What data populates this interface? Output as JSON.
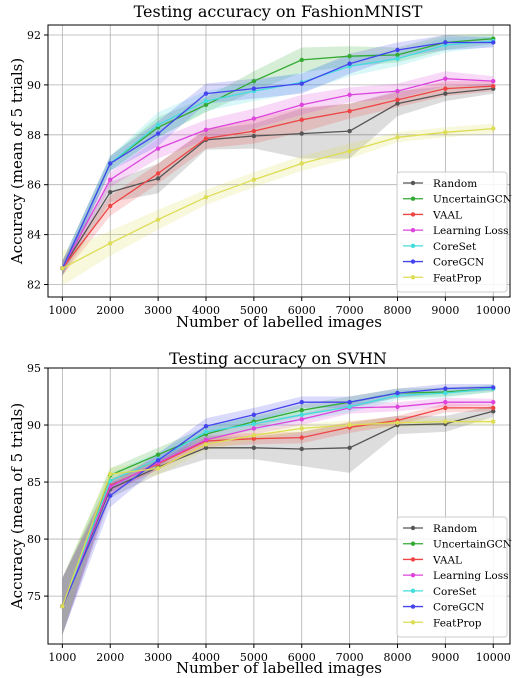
{
  "chart_data": [
    {
      "type": "line",
      "title": "Testing accuracy on FashionMNIST",
      "xlabel": "Number of labelled images",
      "ylabel": "Accuracy (mean of 5 trials)",
      "x": [
        1000,
        2000,
        3000,
        4000,
        5000,
        6000,
        7000,
        8000,
        9000,
        10000
      ],
      "xlim": [
        700,
        10350
      ],
      "ylim": [
        81.5,
        92.4
      ],
      "yticks": [
        82,
        84,
        86,
        88,
        90,
        92
      ],
      "grid": true,
      "legend_position": "bottom-right",
      "series": [
        {
          "name": "Random",
          "color": "#555555",
          "values": [
            82.65,
            85.7,
            86.25,
            87.8,
            87.95,
            88.05,
            88.15,
            89.25,
            89.65,
            89.85
          ],
          "std": [
            0.3,
            0.4,
            0.6,
            0.4,
            0.5,
            1.0,
            1.1,
            0.5,
            0.3,
            0.2
          ]
        },
        {
          "name": "UncertainGCN",
          "color": "#33aa33",
          "values": [
            82.65,
            86.85,
            88.3,
            89.2,
            90.15,
            91.0,
            91.15,
            91.2,
            91.7,
            91.85
          ],
          "std": [
            0.3,
            0.3,
            0.4,
            0.3,
            0.4,
            0.5,
            0.4,
            0.3,
            0.3,
            0.2
          ]
        },
        {
          "name": "VAAL",
          "color": "#ee4444",
          "values": [
            82.65,
            85.15,
            86.45,
            87.85,
            88.15,
            88.6,
            88.95,
            89.4,
            89.85,
            89.95
          ],
          "std": [
            0.3,
            0.4,
            0.4,
            0.4,
            0.5,
            0.5,
            0.3,
            0.3,
            0.3,
            0.2
          ]
        },
        {
          "name": "Learning Loss",
          "color": "#dd44dd",
          "values": [
            82.65,
            86.2,
            87.45,
            88.2,
            88.65,
            89.2,
            89.6,
            89.75,
            90.25,
            90.15
          ],
          "std": [
            0.3,
            0.3,
            0.4,
            0.4,
            0.4,
            0.4,
            0.3,
            0.3,
            0.3,
            0.2
          ]
        },
        {
          "name": "CoreSet",
          "color": "#44dddd",
          "values": [
            82.65,
            86.85,
            88.4,
            89.35,
            89.75,
            90.1,
            90.75,
            91.05,
            91.6,
            91.75
          ],
          "std": [
            0.3,
            0.3,
            0.5,
            0.4,
            0.4,
            0.4,
            0.4,
            0.3,
            0.3,
            0.2
          ]
        },
        {
          "name": "CoreGCN",
          "color": "#4444ee",
          "values": [
            82.65,
            86.85,
            88.05,
            89.65,
            89.85,
            90.05,
            90.85,
            91.4,
            91.7,
            91.7
          ],
          "std": [
            0.3,
            0.3,
            0.5,
            0.4,
            0.4,
            0.4,
            0.4,
            0.3,
            0.3,
            0.2
          ]
        },
        {
          "name": "FeatProp",
          "color": "#dddd55",
          "values": [
            82.65,
            83.65,
            84.6,
            85.5,
            86.2,
            86.85,
            87.35,
            87.9,
            88.1,
            88.25
          ],
          "std": [
            0.7,
            0.5,
            0.4,
            0.3,
            0.3,
            0.3,
            0.3,
            0.2,
            0.2,
            0.2
          ]
        }
      ]
    },
    {
      "type": "line",
      "title": "Testing accuracy on SVHN",
      "xlabel": "Number of labelled images",
      "ylabel": "Accuracy (mean of 5 trials)",
      "x": [
        1000,
        2000,
        3000,
        4000,
        5000,
        6000,
        7000,
        8000,
        9000,
        10000
      ],
      "xlim": [
        700,
        10350
      ],
      "ylim": [
        70.8,
        95.0
      ],
      "yticks": [
        75,
        80,
        85,
        90,
        95
      ],
      "grid": true,
      "legend_position": "bottom-right",
      "series": [
        {
          "name": "Random",
          "color": "#555555",
          "values": [
            74.1,
            84.4,
            86.3,
            88.0,
            88.0,
            87.9,
            88.0,
            90.0,
            90.1,
            91.2
          ],
          "std": [
            2.5,
            0.8,
            0.6,
            1.0,
            1.0,
            1.5,
            2.2,
            0.8,
            0.7,
            0.5
          ]
        },
        {
          "name": "UncertainGCN",
          "color": "#33aa33",
          "values": [
            74.1,
            85.6,
            87.4,
            89.2,
            90.3,
            91.3,
            92.0,
            92.8,
            92.9,
            93.2
          ],
          "std": [
            2.5,
            0.6,
            0.6,
            0.6,
            0.5,
            0.5,
            0.5,
            0.4,
            0.4,
            0.3
          ]
        },
        {
          "name": "VAAL",
          "color": "#ee4444",
          "values": [
            74.1,
            84.7,
            86.6,
            88.6,
            88.8,
            88.9,
            89.8,
            90.4,
            91.5,
            91.5
          ],
          "std": [
            2.5,
            0.6,
            0.5,
            0.5,
            0.5,
            0.5,
            0.5,
            0.4,
            0.4,
            0.3
          ]
        },
        {
          "name": "Learning Loss",
          "color": "#dd44dd",
          "values": [
            74.1,
            84.6,
            86.7,
            88.7,
            89.7,
            90.5,
            91.5,
            91.6,
            92.0,
            92.0
          ],
          "std": [
            2.5,
            0.6,
            0.6,
            0.5,
            0.5,
            0.5,
            0.5,
            0.4,
            0.4,
            0.3
          ]
        },
        {
          "name": "CoreSet",
          "color": "#44dddd",
          "values": [
            74.1,
            85.1,
            87.0,
            89.4,
            90.1,
            90.9,
            91.6,
            92.6,
            92.8,
            93.2
          ],
          "std": [
            2.5,
            0.7,
            0.6,
            0.6,
            0.6,
            0.5,
            0.5,
            0.4,
            0.4,
            0.3
          ]
        },
        {
          "name": "CoreGCN",
          "color": "#4444ee",
          "values": [
            74.1,
            83.8,
            86.9,
            89.9,
            90.9,
            92.0,
            92.0,
            92.8,
            93.2,
            93.3
          ],
          "std": [
            2.5,
            1.0,
            0.6,
            0.7,
            0.6,
            0.5,
            0.5,
            0.4,
            0.4,
            0.3
          ]
        },
        {
          "name": "FeatProp",
          "color": "#dddd55",
          "values": [
            74.1,
            85.7,
            86.2,
            88.3,
            89.1,
            89.7,
            90.0,
            90.2,
            90.3,
            90.3
          ],
          "std": [
            2.5,
            0.6,
            0.6,
            0.5,
            0.5,
            0.4,
            0.4,
            0.4,
            0.3,
            0.3
          ]
        }
      ]
    }
  ]
}
